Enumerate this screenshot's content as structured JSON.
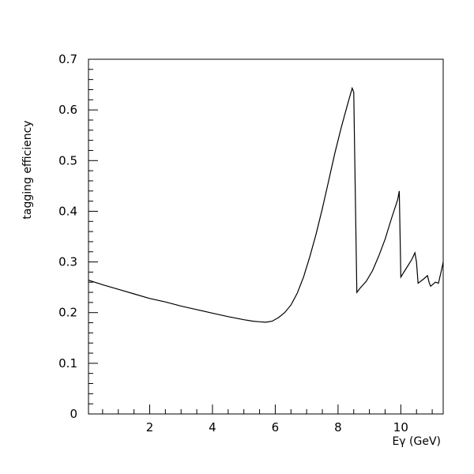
{
  "chart_data": {
    "type": "line",
    "xlabel": "Eγ (GeV)",
    "ylabel": "tagging efficiency",
    "xlim": [
      0.05,
      11.35
    ],
    "ylim": [
      0,
      0.7
    ],
    "x_ticks": [
      2,
      4,
      6,
      8,
      10
    ],
    "y_ticks": [
      0,
      0.1,
      0.2,
      0.3,
      0.4,
      0.5,
      0.6,
      0.7
    ],
    "grid": false,
    "line_color": "#000000",
    "series": [
      {
        "x": [
          0.05,
          0.5,
          1,
          1.5,
          2,
          2.5,
          3,
          3.5,
          4,
          4.5,
          5,
          5.3,
          5.5,
          5.7,
          5.9,
          6.1,
          6.3,
          6.5,
          6.7,
          6.9,
          7.1,
          7.3,
          7.5,
          7.7,
          7.9,
          8.1,
          8.3,
          8.45,
          8.5,
          8.52,
          8.6,
          8.7,
          8.9,
          9.1,
          9.3,
          9.5,
          9.7,
          9.9,
          9.95,
          10.0,
          10.05,
          10.2,
          10.35,
          10.45,
          10.5,
          10.55,
          10.7,
          10.85,
          10.9,
          10.95,
          11.1,
          11.2,
          11.3,
          11.35
        ],
        "y": [
          0.264,
          0.255,
          0.246,
          0.237,
          0.228,
          0.221,
          0.213,
          0.206,
          0.199,
          0.192,
          0.186,
          0.183,
          0.182,
          0.181,
          0.183,
          0.19,
          0.2,
          0.215,
          0.238,
          0.27,
          0.31,
          0.355,
          0.405,
          0.46,
          0.515,
          0.565,
          0.61,
          0.643,
          0.635,
          0.55,
          0.24,
          0.248,
          0.262,
          0.283,
          0.312,
          0.345,
          0.385,
          0.423,
          0.44,
          0.27,
          0.275,
          0.29,
          0.305,
          0.318,
          0.3,
          0.258,
          0.265,
          0.273,
          0.26,
          0.252,
          0.26,
          0.258,
          0.285,
          0.3
        ]
      }
    ]
  }
}
